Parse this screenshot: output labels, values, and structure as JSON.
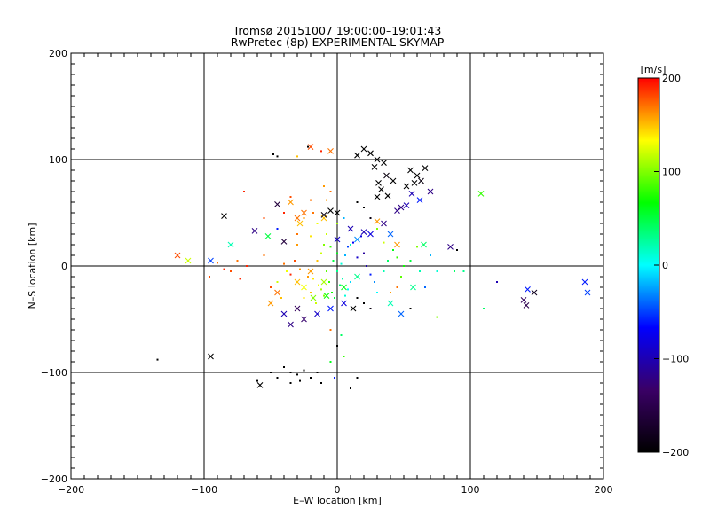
{
  "chart_data": {
    "type": "scatter",
    "title": "Tromsø 20151007 19:00:00–19:01:43",
    "subtitle": "RwPretec (8p) EXPERIMENTAL SKYMAP",
    "xlabel": "E–W location [km]",
    "ylabel": "N–S location [km]",
    "xlim": [
      -200,
      200
    ],
    "ylim": [
      -200,
      200
    ],
    "x_ticks": [
      -200,
      -100,
      0,
      100,
      200
    ],
    "y_ticks": [
      -200,
      -100,
      0,
      100,
      200
    ],
    "x_tick_labels": [
      "−200",
      "−100",
      "0",
      "100",
      "200"
    ],
    "y_tick_labels": [
      "−200",
      "−100",
      "0",
      "100",
      "200"
    ],
    "grid": true,
    "colorbar": {
      "label": "[m/s]",
      "range": [
        -200,
        200
      ],
      "ticks": [
        -200,
        -100,
        0,
        100,
        200
      ],
      "tick_labels": [
        "−200",
        "−100",
        "0",
        "100",
        "200"
      ],
      "colors": [
        "#000000",
        "#3a0066",
        "#0000ff",
        "#00ffff",
        "#00ff00",
        "#ffff00",
        "#ff0000"
      ]
    },
    "series": [
      {
        "marker": "x",
        "points": [
          [
            -20,
            112,
            180
          ],
          [
            -5,
            108,
            170
          ],
          [
            -35,
            60,
            160
          ],
          [
            -45,
            58,
            -160
          ],
          [
            -25,
            50,
            170
          ],
          [
            -10,
            45,
            150
          ],
          [
            -30,
            45,
            170
          ],
          [
            -85,
            47,
            -200
          ],
          [
            -28,
            40,
            150
          ],
          [
            20,
            110,
            -200
          ],
          [
            25,
            106,
            -200
          ],
          [
            30,
            100,
            -200
          ],
          [
            35,
            97,
            -200
          ],
          [
            28,
            93,
            -200
          ],
          [
            15,
            104,
            -200
          ],
          [
            37,
            85,
            -190
          ],
          [
            42,
            80,
            -200
          ],
          [
            31,
            78,
            -200
          ],
          [
            33,
            72,
            -200
          ],
          [
            38,
            66,
            -200
          ],
          [
            30,
            65,
            -200
          ],
          [
            55,
            90,
            -200
          ],
          [
            60,
            85,
            -200
          ],
          [
            66,
            92,
            -200
          ],
          [
            58,
            78,
            -200
          ],
          [
            63,
            80,
            -190
          ],
          [
            52,
            75,
            -200
          ],
          [
            48,
            55,
            -120
          ],
          [
            52,
            57,
            -100
          ],
          [
            56,
            68,
            -100
          ],
          [
            45,
            52,
            -120
          ],
          [
            70,
            70,
            -120
          ],
          [
            62,
            62,
            -60
          ],
          [
            -5,
            52,
            -200
          ],
          [
            0,
            50,
            -200
          ],
          [
            -10,
            48,
            -190
          ],
          [
            30,
            42,
            160
          ],
          [
            35,
            40,
            -120
          ],
          [
            25,
            30,
            -80
          ],
          [
            40,
            30,
            -40
          ],
          [
            20,
            32,
            -100
          ],
          [
            15,
            25,
            -30
          ],
          [
            10,
            35,
            -100
          ],
          [
            108,
            68,
            80
          ],
          [
            85,
            18,
            -120
          ],
          [
            65,
            20,
            40
          ],
          [
            -62,
            33,
            -120
          ],
          [
            -52,
            28,
            50
          ],
          [
            -120,
            10,
            180
          ],
          [
            -112,
            5,
            120
          ],
          [
            -95,
            5,
            -50
          ],
          [
            -80,
            20,
            20
          ],
          [
            -45,
            -25,
            170
          ],
          [
            -50,
            -35,
            160
          ],
          [
            -40,
            -45,
            -100
          ],
          [
            -30,
            -40,
            -140
          ],
          [
            -25,
            -50,
            -130
          ],
          [
            -35,
            -55,
            -120
          ],
          [
            -15,
            -45,
            -90
          ],
          [
            -5,
            -40,
            -60
          ],
          [
            5,
            -35,
            -80
          ],
          [
            12,
            -40,
            -200
          ],
          [
            -18,
            -30,
            100
          ],
          [
            -8,
            -28,
            70
          ],
          [
            -25,
            -20,
            130
          ],
          [
            -10,
            -15,
            110
          ],
          [
            5,
            -20,
            60
          ],
          [
            15,
            -10,
            30
          ],
          [
            40,
            -35,
            20
          ],
          [
            48,
            -45,
            -40
          ],
          [
            57,
            -20,
            30
          ],
          [
            -20,
            -5,
            160
          ],
          [
            -30,
            -15,
            150
          ],
          [
            140,
            -32,
            -140
          ],
          [
            142,
            -37,
            -150
          ],
          [
            148,
            -25,
            -180
          ],
          [
            143,
            -22,
            -60
          ],
          [
            186,
            -15,
            -60
          ],
          [
            188,
            -25,
            -50
          ],
          [
            -95,
            -85,
            -200
          ],
          [
            -58,
            -112,
            -200
          ],
          [
            -40,
            23,
            -160
          ],
          [
            0,
            25,
            -90
          ],
          [
            45,
            20,
            160
          ]
        ]
      },
      {
        "marker": "dot",
        "points": [
          [
            -22,
            112,
            -200
          ],
          [
            -12,
            108,
            190
          ],
          [
            -30,
            103,
            150
          ],
          [
            -48,
            105,
            -200
          ],
          [
            -45,
            103,
            -200
          ],
          [
            -70,
            70,
            190
          ],
          [
            -35,
            65,
            180
          ],
          [
            -20,
            62,
            170
          ],
          [
            -10,
            75,
            160
          ],
          [
            -5,
            70,
            170
          ],
          [
            -40,
            50,
            190
          ],
          [
            -8,
            30,
            120
          ],
          [
            -20,
            28,
            140
          ],
          [
            -30,
            20,
            160
          ],
          [
            -55,
            10,
            170
          ],
          [
            -68,
            0,
            190
          ],
          [
            -73,
            -12,
            190
          ],
          [
            -96,
            -10,
            180
          ],
          [
            -85,
            -3,
            190
          ],
          [
            -75,
            5,
            170
          ],
          [
            -80,
            -5,
            180
          ],
          [
            -90,
            3,
            170
          ],
          [
            -32,
            5,
            180
          ],
          [
            -40,
            2,
            170
          ],
          [
            -28,
            -3,
            160
          ],
          [
            -35,
            -8,
            190
          ],
          [
            -22,
            -10,
            160
          ],
          [
            -18,
            -12,
            140
          ],
          [
            -14,
            -18,
            130
          ],
          [
            -12,
            -22,
            110
          ],
          [
            -10,
            -28,
            100
          ],
          [
            -6,
            -15,
            80
          ],
          [
            -4,
            -25,
            70
          ],
          [
            -2,
            -30,
            50
          ],
          [
            2,
            -18,
            40
          ],
          [
            4,
            -12,
            20
          ],
          [
            6,
            -28,
            10
          ],
          [
            8,
            -22,
            0
          ],
          [
            10,
            -15,
            -10
          ],
          [
            -20,
            -25,
            150
          ],
          [
            -25,
            -30,
            140
          ],
          [
            -16,
            -35,
            120
          ],
          [
            -8,
            -5,
            90
          ],
          [
            -3,
            5,
            50
          ],
          [
            0,
            -5,
            30
          ],
          [
            3,
            2,
            10
          ],
          [
            6,
            10,
            -20
          ],
          [
            8,
            18,
            -50
          ],
          [
            12,
            22,
            -70
          ],
          [
            15,
            8,
            -90
          ],
          [
            20,
            12,
            -110
          ],
          [
            22,
            0,
            -100
          ],
          [
            25,
            -8,
            -60
          ],
          [
            28,
            -15,
            -30
          ],
          [
            30,
            -25,
            0
          ],
          [
            35,
            -5,
            20
          ],
          [
            38,
            5,
            40
          ],
          [
            42,
            15,
            60
          ],
          [
            45,
            8,
            80
          ],
          [
            50,
            0,
            70
          ],
          [
            55,
            5,
            50
          ],
          [
            60,
            18,
            100
          ],
          [
            62,
            -5,
            20
          ],
          [
            66,
            -20,
            -40
          ],
          [
            70,
            10,
            -20
          ],
          [
            75,
            -5,
            10
          ],
          [
            88,
            -5,
            40
          ],
          [
            90,
            15,
            -200
          ],
          [
            95,
            -5,
            30
          ],
          [
            -5,
            -60,
            170
          ],
          [
            0,
            -75,
            -200
          ],
          [
            5,
            -85,
            80
          ],
          [
            -5,
            -90,
            60
          ],
          [
            3,
            -65,
            40
          ],
          [
            -50,
            -100,
            -200
          ],
          [
            -45,
            -105,
            -200
          ],
          [
            -40,
            -95,
            -200
          ],
          [
            -35,
            -100,
            -200
          ],
          [
            -30,
            -102,
            -200
          ],
          [
            -25,
            -98,
            -200
          ],
          [
            -20,
            -105,
            -200
          ],
          [
            -15,
            -100,
            -200
          ],
          [
            -12,
            -110,
            -200
          ],
          [
            -28,
            -108,
            -200
          ],
          [
            -35,
            -110,
            -200
          ],
          [
            10,
            -115,
            -200
          ],
          [
            15,
            -105,
            -200
          ],
          [
            -2,
            -105,
            -60
          ],
          [
            -135,
            -88,
            -200
          ],
          [
            -60,
            -108,
            -200
          ],
          [
            110,
            -40,
            40
          ],
          [
            120,
            -15,
            -100
          ],
          [
            -8,
            62,
            160
          ],
          [
            15,
            60,
            -200
          ],
          [
            20,
            55,
            -200
          ],
          [
            25,
            45,
            -190
          ],
          [
            -45,
            35,
            -60
          ],
          [
            -55,
            45,
            180
          ],
          [
            -15,
            40,
            130
          ],
          [
            10,
            20,
            20
          ],
          [
            18,
            28,
            -80
          ],
          [
            30,
            35,
            100
          ],
          [
            35,
            22,
            120
          ],
          [
            40,
            -25,
            160
          ],
          [
            45,
            -20,
            170
          ],
          [
            48,
            -10,
            90
          ],
          [
            -15,
            5,
            150
          ],
          [
            -12,
            12,
            120
          ],
          [
            -10,
            20,
            100
          ],
          [
            -5,
            18,
            80
          ],
          [
            0,
            12,
            60
          ],
          [
            -45,
            -15,
            120
          ],
          [
            -50,
            -20,
            180
          ],
          [
            -42,
            -30,
            150
          ],
          [
            -38,
            -5,
            130
          ],
          [
            15,
            -30,
            -200
          ],
          [
            20,
            -35,
            -200
          ],
          [
            25,
            -40,
            -190
          ],
          [
            55,
            -40,
            -200
          ],
          [
            75,
            -48,
            100
          ],
          [
            -25,
            45,
            160
          ],
          [
            -18,
            50,
            170
          ],
          [
            -30,
            30,
            170
          ],
          [
            0,
            40,
            110
          ],
          [
            5,
            45,
            -20
          ]
        ]
      }
    ]
  }
}
